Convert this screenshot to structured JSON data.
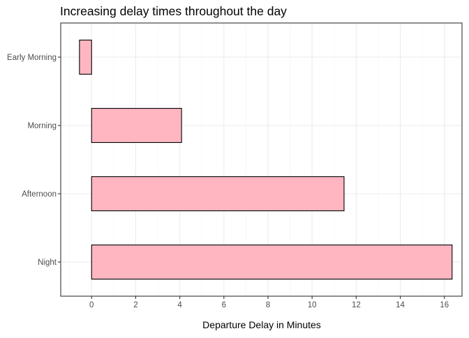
{
  "chart_data": {
    "type": "bar",
    "orientation": "horizontal",
    "title": "Increasing delay times throughout the day",
    "xlabel": "Departure Delay in Minutes",
    "ylabel": "",
    "categories": [
      "Night",
      "Afternoon",
      "Morning",
      "Early Morning"
    ],
    "values": [
      16.35,
      11.45,
      4.08,
      -0.55
    ],
    "xlim": [
      -1.4,
      16.8
    ],
    "x_ticks": [
      0,
      2,
      4,
      6,
      8,
      10,
      12,
      14,
      16
    ],
    "x_tick_labels": [
      "0",
      "2",
      "4",
      "6",
      "8",
      "10",
      "12",
      "14",
      "16"
    ],
    "grid": true,
    "legend": "none",
    "colors": {
      "bar_fill": "#ffb6c1",
      "bar_stroke": "#000000",
      "grid_major": "#ebebeb",
      "grid_minor": "#f5f5f5",
      "panel_border": "#333333",
      "tick_label": "#4d4d4d",
      "axis_title": "#000000"
    }
  }
}
